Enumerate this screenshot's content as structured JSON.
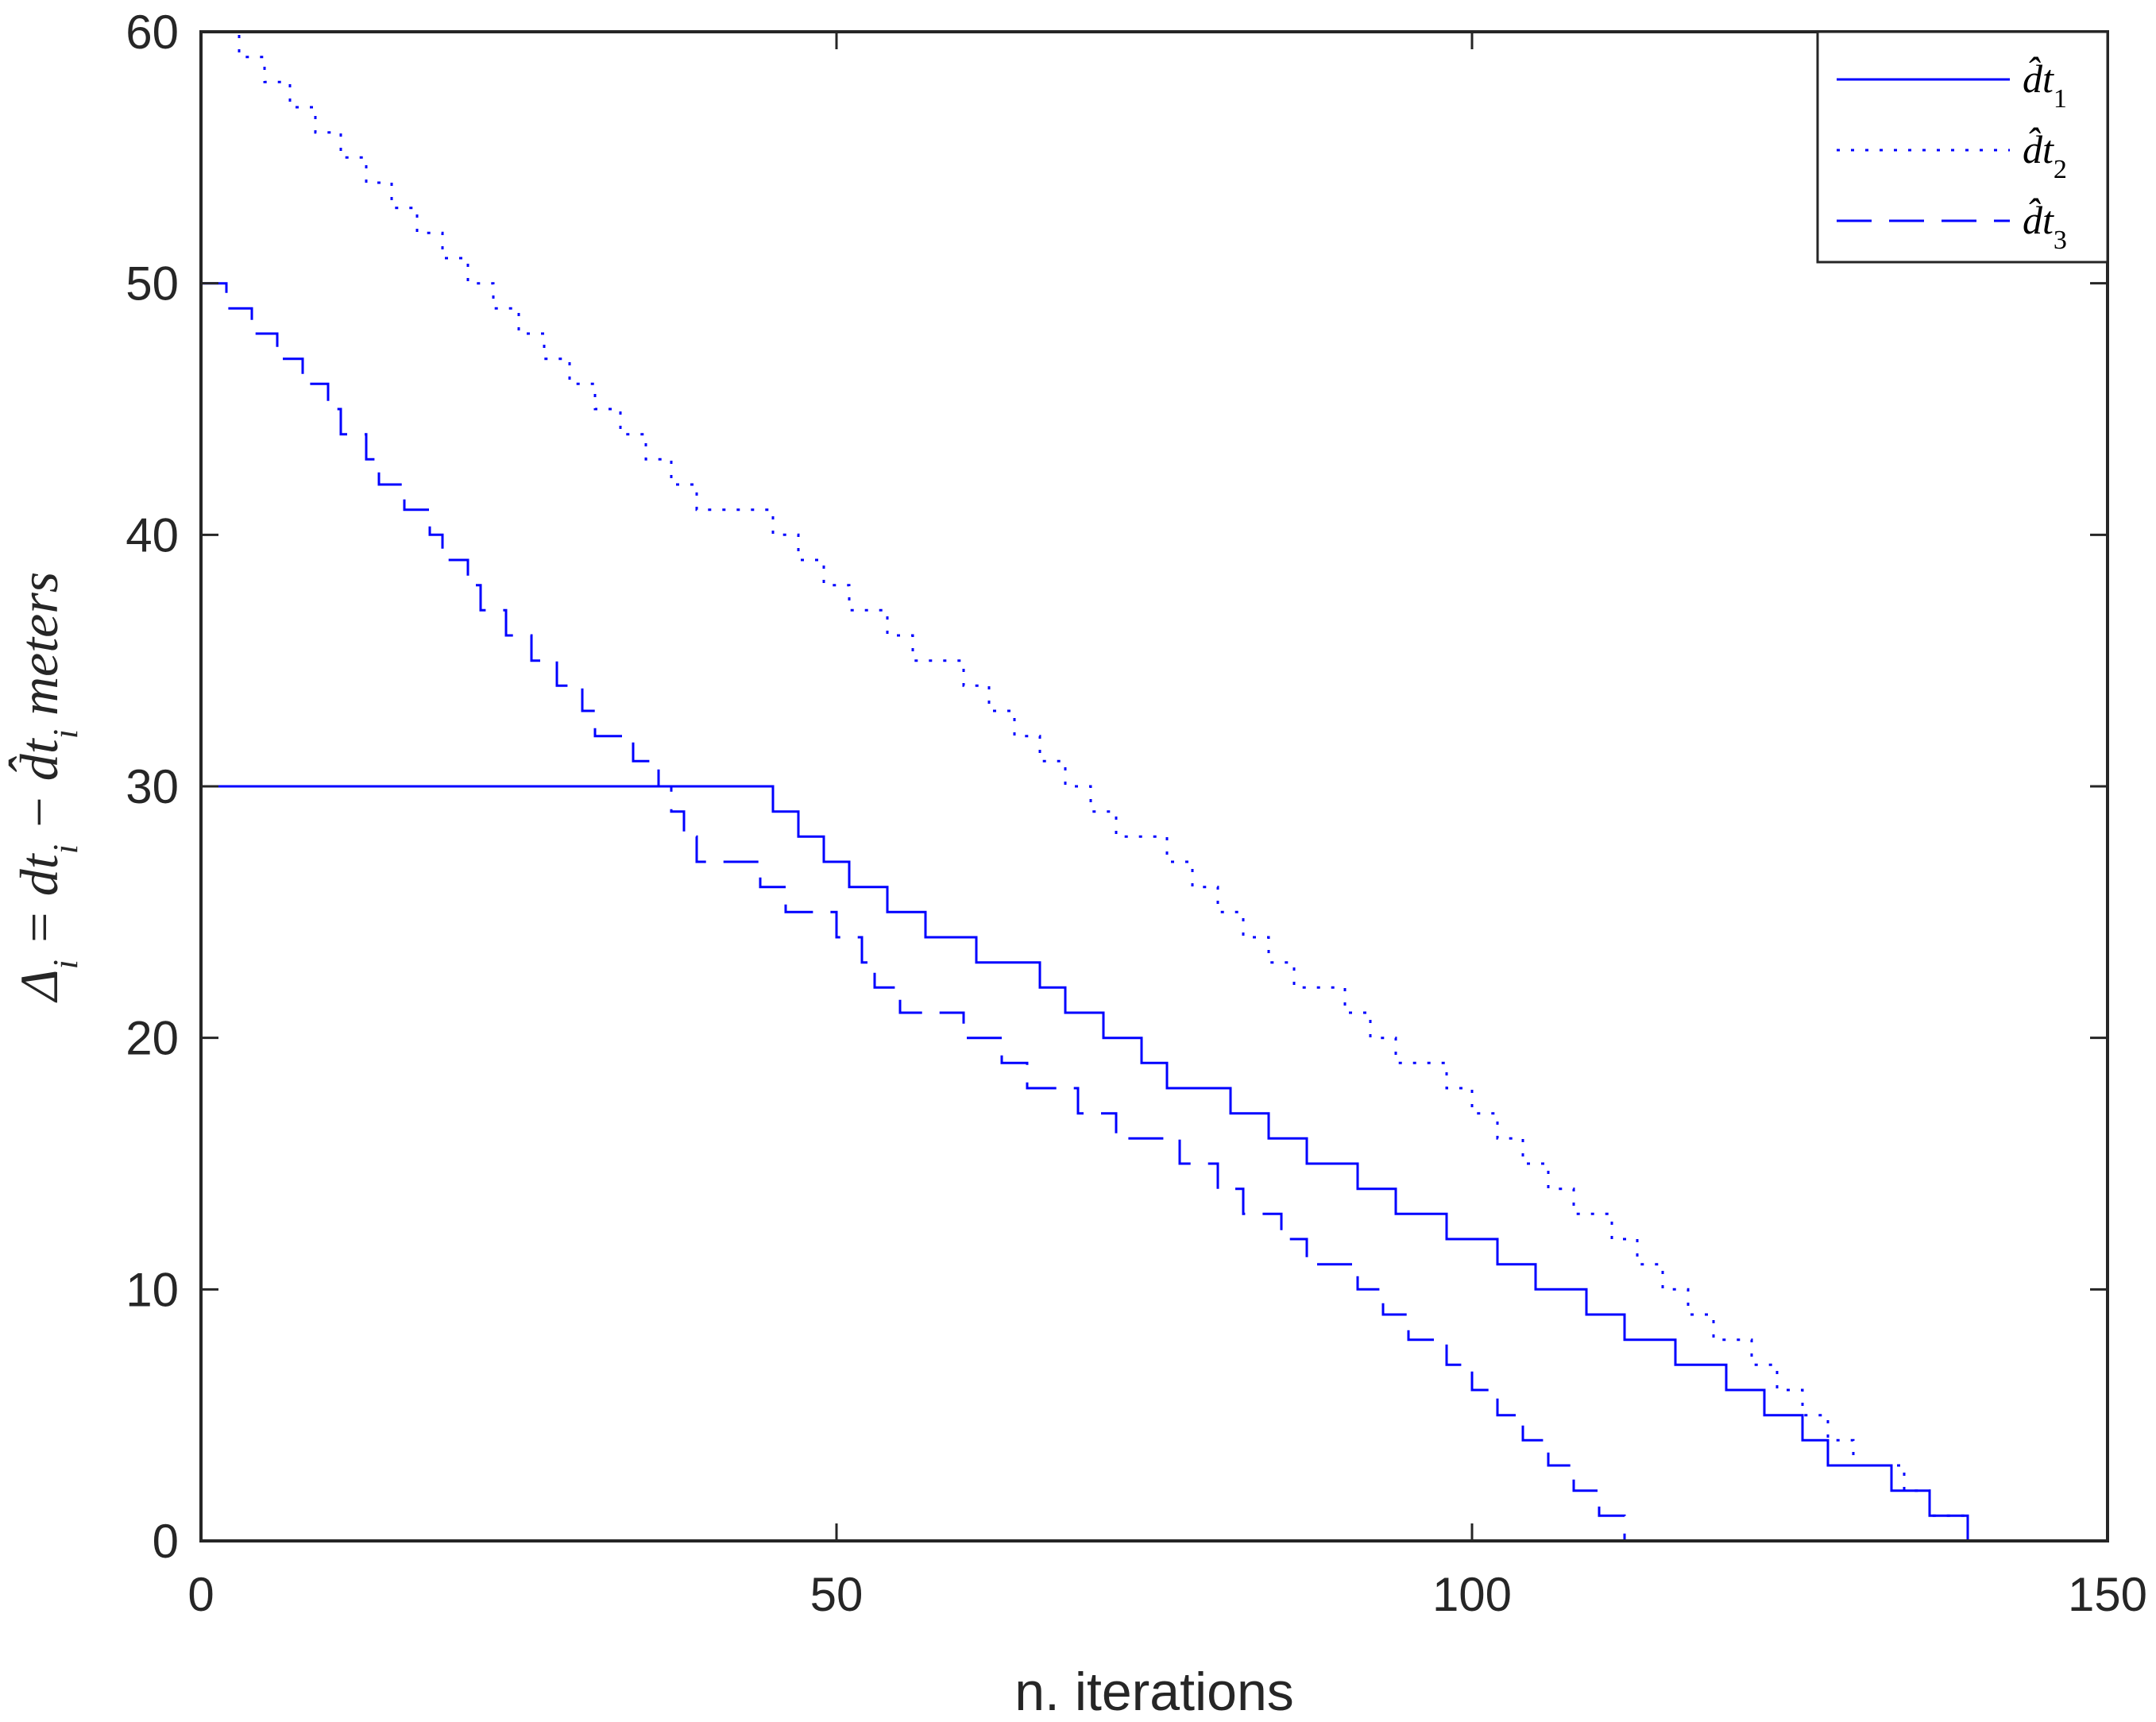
{
  "chart_data": {
    "type": "line",
    "title": "",
    "xlabel": "n. iterations",
    "ylabel": {
      "text": "Δi = dti − d̂ti meters",
      "parts": {
        "delta": "Δ",
        "sub_i": "i",
        "eq": " = ",
        "dt": "dt",
        "minus": " − ",
        "dthat": "d̂t",
        "unit": " meters"
      }
    },
    "xlim": [
      0,
      150
    ],
    "ylim": [
      0,
      60
    ],
    "xticks": [
      0,
      50,
      100,
      150
    ],
    "yticks": [
      0,
      10,
      20,
      30,
      40,
      50,
      60
    ],
    "xtick_labels": [
      "0",
      "50",
      "100",
      "150"
    ],
    "ytick_labels": [
      "0",
      "10",
      "20",
      "30",
      "40",
      "50",
      "60"
    ],
    "grid": false,
    "legend_position": "top-right",
    "line_color": "#0000ff",
    "series": [
      {
        "name": "d̂t1",
        "label": {
          "base": "d̂t",
          "sub": "1"
        },
        "style": "solid",
        "points": [
          [
            0,
            30
          ],
          [
            44,
            30
          ],
          [
            45,
            29
          ],
          [
            46,
            29
          ],
          [
            47,
            28
          ],
          [
            48,
            28
          ],
          [
            49,
            27
          ],
          [
            50,
            27
          ],
          [
            51,
            26
          ],
          [
            53,
            26
          ],
          [
            54,
            25
          ],
          [
            56,
            25
          ],
          [
            57,
            24
          ],
          [
            60,
            24
          ],
          [
            61,
            23
          ],
          [
            65,
            23
          ],
          [
            66,
            22
          ],
          [
            67,
            22
          ],
          [
            68,
            21
          ],
          [
            70,
            21
          ],
          [
            71,
            20
          ],
          [
            73,
            20
          ],
          [
            74,
            19
          ],
          [
            75,
            19
          ],
          [
            76,
            18
          ],
          [
            80,
            18
          ],
          [
            81,
            17
          ],
          [
            83,
            17
          ],
          [
            84,
            16
          ],
          [
            86,
            16
          ],
          [
            87,
            15
          ],
          [
            90,
            15
          ],
          [
            91,
            14
          ],
          [
            93,
            14
          ],
          [
            94,
            13
          ],
          [
            97,
            13
          ],
          [
            98,
            12
          ],
          [
            101,
            12
          ],
          [
            102,
            11
          ],
          [
            104,
            11
          ],
          [
            105,
            10
          ],
          [
            108,
            10
          ],
          [
            109,
            9
          ],
          [
            111,
            9
          ],
          [
            112,
            8
          ],
          [
            115,
            8
          ],
          [
            116,
            7
          ],
          [
            119,
            7
          ],
          [
            120,
            6
          ],
          [
            122,
            6
          ],
          [
            123,
            5
          ],
          [
            125,
            5
          ],
          [
            126,
            4
          ],
          [
            127,
            4
          ],
          [
            128,
            3
          ],
          [
            132,
            3
          ],
          [
            133,
            2
          ],
          [
            135,
            2
          ],
          [
            136,
            1
          ],
          [
            138,
            1
          ],
          [
            139,
            0
          ]
        ]
      },
      {
        "name": "d̂t2",
        "label": {
          "base": "d̂t",
          "sub": "2"
        },
        "style": "dotted",
        "points": [
          [
            1,
            60
          ],
          [
            3,
            59
          ],
          [
            5,
            58
          ],
          [
            7,
            57
          ],
          [
            9,
            56
          ],
          [
            11,
            55
          ],
          [
            13,
            54
          ],
          [
            15,
            53
          ],
          [
            17,
            52
          ],
          [
            19,
            51
          ],
          [
            21,
            50
          ],
          [
            23,
            49
          ],
          [
            25,
            48
          ],
          [
            27,
            47
          ],
          [
            29,
            46
          ],
          [
            31,
            45
          ],
          [
            33,
            44
          ],
          [
            35,
            43
          ],
          [
            37,
            42
          ],
          [
            39,
            41
          ],
          [
            43,
            41
          ],
          [
            45,
            40
          ],
          [
            47,
            39
          ],
          [
            49,
            38
          ],
          [
            51,
            37
          ],
          [
            53,
            37
          ],
          [
            54,
            36
          ],
          [
            56,
            35
          ],
          [
            58,
            35
          ],
          [
            60,
            34
          ],
          [
            62,
            33
          ],
          [
            64,
            32
          ],
          [
            66,
            31
          ],
          [
            68,
            30
          ],
          [
            70,
            29
          ],
          [
            72,
            28
          ],
          [
            74,
            28
          ],
          [
            76,
            27
          ],
          [
            78,
            26
          ],
          [
            80,
            25
          ],
          [
            82,
            24
          ],
          [
            84,
            23
          ],
          [
            86,
            22
          ],
          [
            88,
            22
          ],
          [
            90,
            21
          ],
          [
            92,
            20
          ],
          [
            94,
            19
          ],
          [
            96,
            19
          ],
          [
            98,
            18
          ],
          [
            100,
            17
          ],
          [
            102,
            16
          ],
          [
            104,
            15
          ],
          [
            106,
            14
          ],
          [
            108,
            13
          ],
          [
            110,
            13
          ],
          [
            111,
            12
          ],
          [
            113,
            11
          ],
          [
            115,
            10
          ],
          [
            117,
            9
          ],
          [
            119,
            8
          ],
          [
            121,
            8
          ],
          [
            122,
            7
          ],
          [
            124,
            6
          ],
          [
            126,
            5
          ],
          [
            128,
            4
          ],
          [
            130,
            3
          ],
          [
            132,
            3
          ],
          [
            134,
            2
          ],
          [
            136,
            1
          ],
          [
            138,
            1
          ],
          [
            139,
            0
          ]
        ]
      },
      {
        "name": "d̂t3",
        "label": {
          "base": "d̂t",
          "sub": "3"
        },
        "style": "dashed",
        "points": [
          [
            0,
            50
          ],
          [
            1,
            50
          ],
          [
            2,
            49
          ],
          [
            3,
            49
          ],
          [
            4,
            48
          ],
          [
            5,
            48
          ],
          [
            6,
            47
          ],
          [
            8,
            46
          ],
          [
            9,
            46
          ],
          [
            10,
            45
          ],
          [
            11,
            44
          ],
          [
            12,
            44
          ],
          [
            13,
            43
          ],
          [
            14,
            42
          ],
          [
            15,
            42
          ],
          [
            16,
            41
          ],
          [
            17,
            41
          ],
          [
            18,
            40
          ],
          [
            19,
            39
          ],
          [
            20,
            39
          ],
          [
            21,
            38
          ],
          [
            22,
            37
          ],
          [
            23,
            37
          ],
          [
            24,
            36
          ],
          [
            26,
            35
          ],
          [
            28,
            34
          ],
          [
            29,
            34
          ],
          [
            30,
            33
          ],
          [
            31,
            32
          ],
          [
            32,
            32
          ],
          [
            34,
            31
          ],
          [
            36,
            30
          ],
          [
            37,
            29
          ],
          [
            38,
            28
          ],
          [
            39,
            27
          ],
          [
            43,
            27
          ],
          [
            44,
            26
          ],
          [
            45,
            26
          ],
          [
            46,
            25
          ],
          [
            49,
            25
          ],
          [
            50,
            24
          ],
          [
            51,
            24
          ],
          [
            52,
            23
          ],
          [
            53,
            22
          ],
          [
            54,
            22
          ],
          [
            55,
            21
          ],
          [
            59,
            21
          ],
          [
            60,
            20
          ],
          [
            62,
            20
          ],
          [
            63,
            19
          ],
          [
            64,
            19
          ],
          [
            65,
            18
          ],
          [
            68,
            18
          ],
          [
            69,
            17
          ],
          [
            71,
            17
          ],
          [
            72,
            16
          ],
          [
            76,
            16
          ],
          [
            77,
            15
          ],
          [
            79,
            15
          ],
          [
            80,
            14
          ],
          [
            81,
            14
          ],
          [
            82,
            13
          ],
          [
            84,
            13
          ],
          [
            85,
            12
          ],
          [
            86,
            12
          ],
          [
            87,
            11
          ],
          [
            90,
            11
          ],
          [
            91,
            10
          ],
          [
            92,
            10
          ],
          [
            93,
            9
          ],
          [
            94,
            9
          ],
          [
            95,
            8
          ],
          [
            97,
            8
          ],
          [
            98,
            7
          ],
          [
            99,
            7
          ],
          [
            100,
            6
          ],
          [
            101,
            6
          ],
          [
            102,
            5
          ],
          [
            103,
            5
          ],
          [
            104,
            4
          ],
          [
            105,
            4
          ],
          [
            106,
            3
          ],
          [
            107,
            3
          ],
          [
            108,
            2
          ],
          [
            109,
            2
          ],
          [
            110,
            1
          ],
          [
            111,
            1
          ],
          [
            112,
            0
          ]
        ]
      }
    ]
  }
}
